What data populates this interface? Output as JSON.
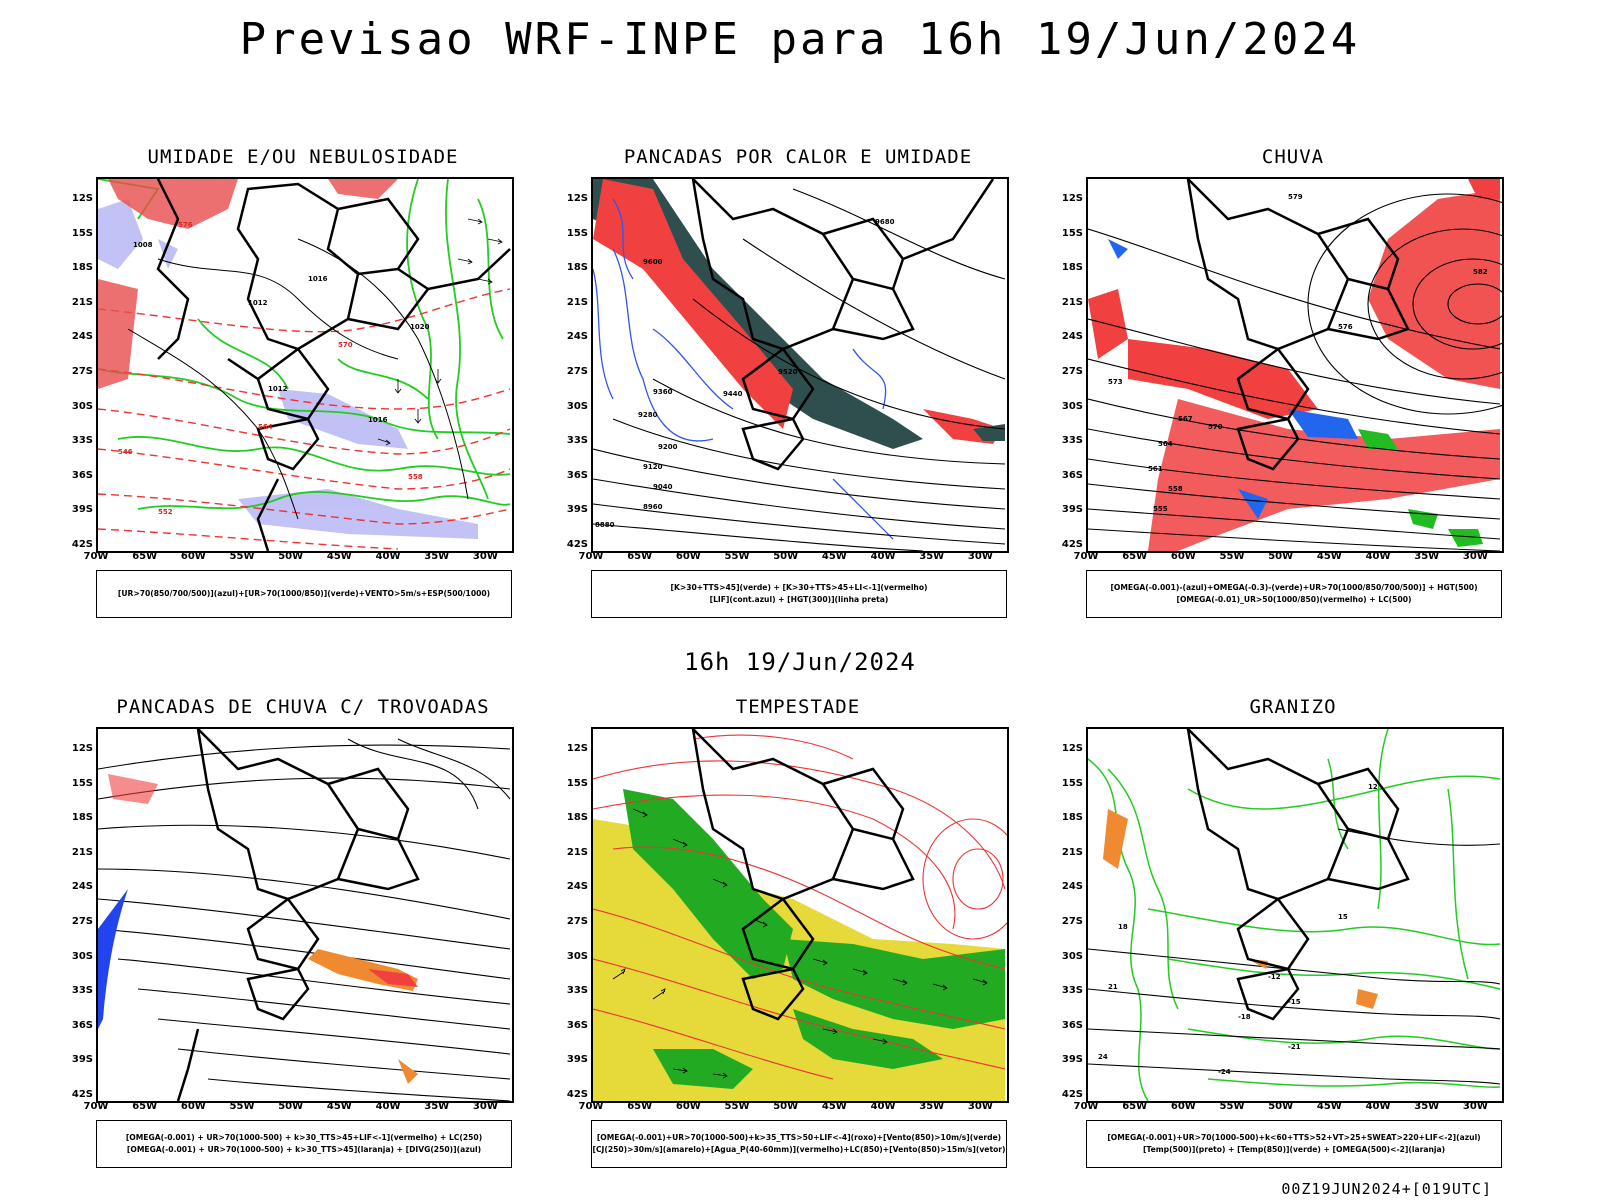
{
  "title": "Previsao WRF-INPE  para 16h 19/Jun/2024",
  "mid_title": "16h 19/Jun/2024",
  "footer": "00Z19JUN2024+[019UTC]",
  "lat_labels": [
    "12S",
    "15S",
    "18S",
    "21S",
    "24S",
    "27S",
    "30S",
    "33S",
    "36S",
    "39S",
    "42S"
  ],
  "lon_labels": [
    "70W",
    "65W",
    "60W",
    "55W",
    "50W",
    "45W",
    "40W",
    "35W",
    "30W"
  ],
  "panels": [
    {
      "id": "umidade",
      "title": "UMIDADE E/OU NEBULOSIDADE",
      "legend": [
        "[UR>70(850/700/500)](azul)+[UR>70(1000/850)](verde)+VENTO>5m/s+ESP(500/1000)"
      ],
      "contour_labels": [
        "1008",
        "1012",
        "1016",
        "1012",
        "1016",
        "1020",
        "576",
        "570",
        "564",
        "558",
        "552",
        "546"
      ]
    },
    {
      "id": "pancadas_calor",
      "title": "PANCADAS POR CALOR E UMIDADE",
      "legend": [
        "[K>30+TTS>45](verde) + [K>30+TTS>45+LI<-1](vermelho)",
        "[LIF](cont.azul) + [HGT(300)](linha preta)"
      ],
      "contour_labels": [
        "9680",
        "9600",
        "9520",
        "9440",
        "9360",
        "9280",
        "9200",
        "9120",
        "9040",
        "8960",
        "8880"
      ]
    },
    {
      "id": "chuva",
      "title": "CHUVA",
      "legend": [
        "[OMEGA(-0.001)-(azul)+OMEGA(-0.3)-(verde)+UR>70(1000/850/700/500)] + HGT(500)",
        "[OMEGA(-0.01)_UR>50(1000/850)(vermelho) + LC(500)"
      ],
      "contour_labels": [
        "582",
        "579",
        "576",
        "573",
        "570",
        "567",
        "564",
        "561",
        "558",
        "555"
      ]
    },
    {
      "id": "trovoadas",
      "title": "PANCADAS DE CHUVA C/ TROVOADAS",
      "legend": [
        "[OMEGA(-0.001) + UR>70(1000-500) + k>30_TTS>45+LIF<-1](vermelho) + LC(250)",
        "[OMEGA(-0.001) + UR>70(1000-500) + k>30_TTS>45](laranja) + [DIVG(250)](azul)"
      ],
      "contour_labels": []
    },
    {
      "id": "tempestade",
      "title": "TEMPESTADE",
      "legend": [
        "[OMEGA(-0.001)+UR>70(1000-500)+k>35_TTS>50+LIF<-4](roxo)+[Vento(850)>10m/s](verde)",
        "[CJ(250)>30m/s](amarelo)+[Agua_P(40-60mm)](vermelho)+LC(850)+[Vento(850)>15m/s](vetor)"
      ],
      "contour_labels": []
    },
    {
      "id": "granizo",
      "title": "GRANIZO",
      "legend": [
        "[OMEGA(-0.001)+UR>70(1000-500)+k<60+TTS>52+VT>25+SWEAT>220+LIF<-2](azul)",
        "[Temp(500)](preto) + [Temp(850)](verde) + [OMEGA(500)<-2](laranja)"
      ],
      "contour_labels": [
        "12",
        "15",
        "18",
        "21",
        "24",
        "-12",
        "-15",
        "-18",
        "-21",
        "-24"
      ]
    }
  ]
}
